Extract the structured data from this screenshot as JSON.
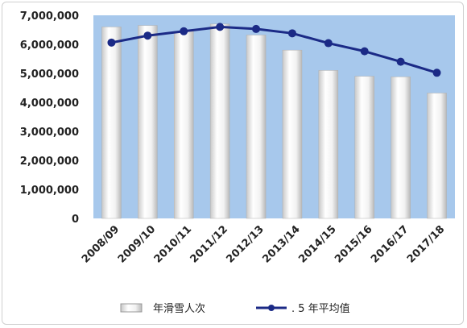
{
  "chart_data": {
    "type": "bar",
    "categories": [
      "2008/09",
      "2009/10",
      "2010/11",
      "2011/12",
      "2012/13",
      "2013/14",
      "2014/15",
      "2015/16",
      "2016/17",
      "2017/18"
    ],
    "series": [
      {
        "name": "年滑雪人次",
        "type": "bar",
        "values": [
          6600000,
          6650000,
          6450000,
          6700000,
          6320000,
          5800000,
          5100000,
          4900000,
          4880000,
          4320000
        ]
      },
      {
        "name": ". 5 年平均值",
        "type": "line",
        "values": [
          6060000,
          6300000,
          6450000,
          6600000,
          6530000,
          6380000,
          6040000,
          5760000,
          5400000,
          5020000
        ]
      }
    ],
    "y_ticks": [
      "0",
      "1,000,000",
      "2,000,000",
      "3,000,000",
      "4,000,000",
      "5,000,000",
      "6,000,000",
      "7,000,000"
    ],
    "ylim": [
      0,
      7000000
    ],
    "grid": false,
    "legend_position": "bottom",
    "colors": {
      "plot_background": "#a7c8ec",
      "bar_fill": "#f4f4f4",
      "line": "#1b2a86",
      "marker": "#1b2a86"
    }
  }
}
